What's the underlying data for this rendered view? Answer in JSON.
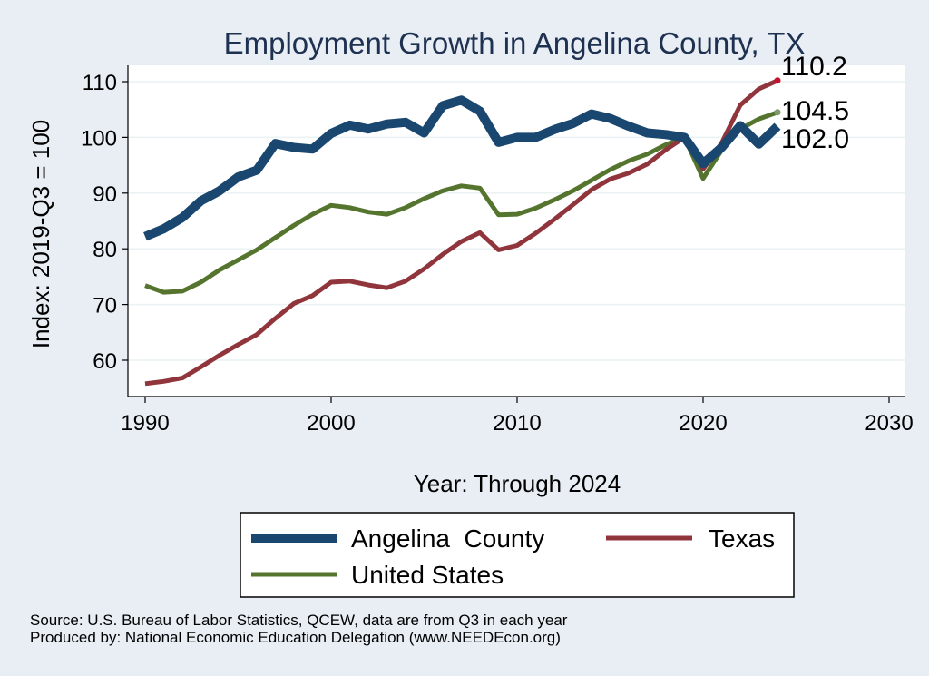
{
  "chart_data": {
    "type": "line",
    "title": "Employment Growth in Angelina County, TX",
    "xlabel": "Year: Through 2024",
    "ylabel": "Index: 2019-Q3 = 100",
    "xlim": [
      1990,
      2030
    ],
    "ylim": [
      53,
      112
    ],
    "xticks": [
      1990,
      2000,
      2010,
      2020,
      2030
    ],
    "yticks": [
      60,
      70,
      80,
      90,
      100,
      110
    ],
    "grid": true,
    "legend_position": "bottom",
    "x": [
      1990,
      1991,
      1992,
      1993,
      1994,
      1995,
      1996,
      1997,
      1998,
      1999,
      2000,
      2001,
      2002,
      2003,
      2004,
      2005,
      2006,
      2007,
      2008,
      2009,
      2010,
      2011,
      2012,
      2013,
      2014,
      2015,
      2016,
      2017,
      2018,
      2019,
      2020,
      2021,
      2022,
      2023,
      2024
    ],
    "series": [
      {
        "name": "Angelina  County",
        "color": "#1a476f",
        "width": 10,
        "end_label": "102.0",
        "values": [
          82.2,
          83.6,
          85.6,
          88.6,
          90.4,
          92.9,
          94.1,
          98.9,
          98.2,
          97.9,
          100.7,
          102.2,
          101.5,
          102.4,
          102.7,
          100.8,
          105.7,
          106.7,
          104.7,
          99.1,
          100.0,
          100.0,
          101.4,
          102.5,
          104.2,
          103.4,
          102.0,
          100.8,
          100.5,
          100.0,
          95.3,
          98.2,
          102.1,
          98.8,
          102.0
        ]
      },
      {
        "name": "Texas",
        "color": "#90353b",
        "width": 5,
        "end_label": "110.2",
        "end_marker_color": "#c8102e",
        "values": [
          55.8,
          56.2,
          56.8,
          58.8,
          60.9,
          62.8,
          64.6,
          67.5,
          70.2,
          71.6,
          74.0,
          74.2,
          73.5,
          73.0,
          74.2,
          76.4,
          79.0,
          81.3,
          82.9,
          79.8,
          80.6,
          82.8,
          85.3,
          87.9,
          90.6,
          92.5,
          93.6,
          95.2,
          97.8,
          100.0,
          94.3,
          99.0,
          105.8,
          108.7,
          110.2
        ]
      },
      {
        "name": "United States",
        "color": "#55752f",
        "width": 5,
        "end_label": "104.5",
        "end_marker_color": "#7f9a6e",
        "values": [
          73.4,
          72.2,
          72.4,
          74.0,
          76.2,
          78.0,
          79.8,
          82.0,
          84.2,
          86.2,
          87.8,
          87.4,
          86.6,
          86.2,
          87.4,
          89.0,
          90.4,
          91.3,
          90.9,
          86.1,
          86.2,
          87.3,
          88.8,
          90.4,
          92.3,
          94.2,
          95.8,
          97.0,
          98.7,
          100.0,
          92.6,
          97.7,
          101.5,
          103.3,
          104.5
        ]
      }
    ]
  },
  "footnotes": {
    "source": "Source: U.S. Bureau of Labor Statistics, QCEW, data are from Q3 in each year",
    "producer": "Produced by: National Economic Education Delegation (www.NEEDEcon.org)"
  }
}
